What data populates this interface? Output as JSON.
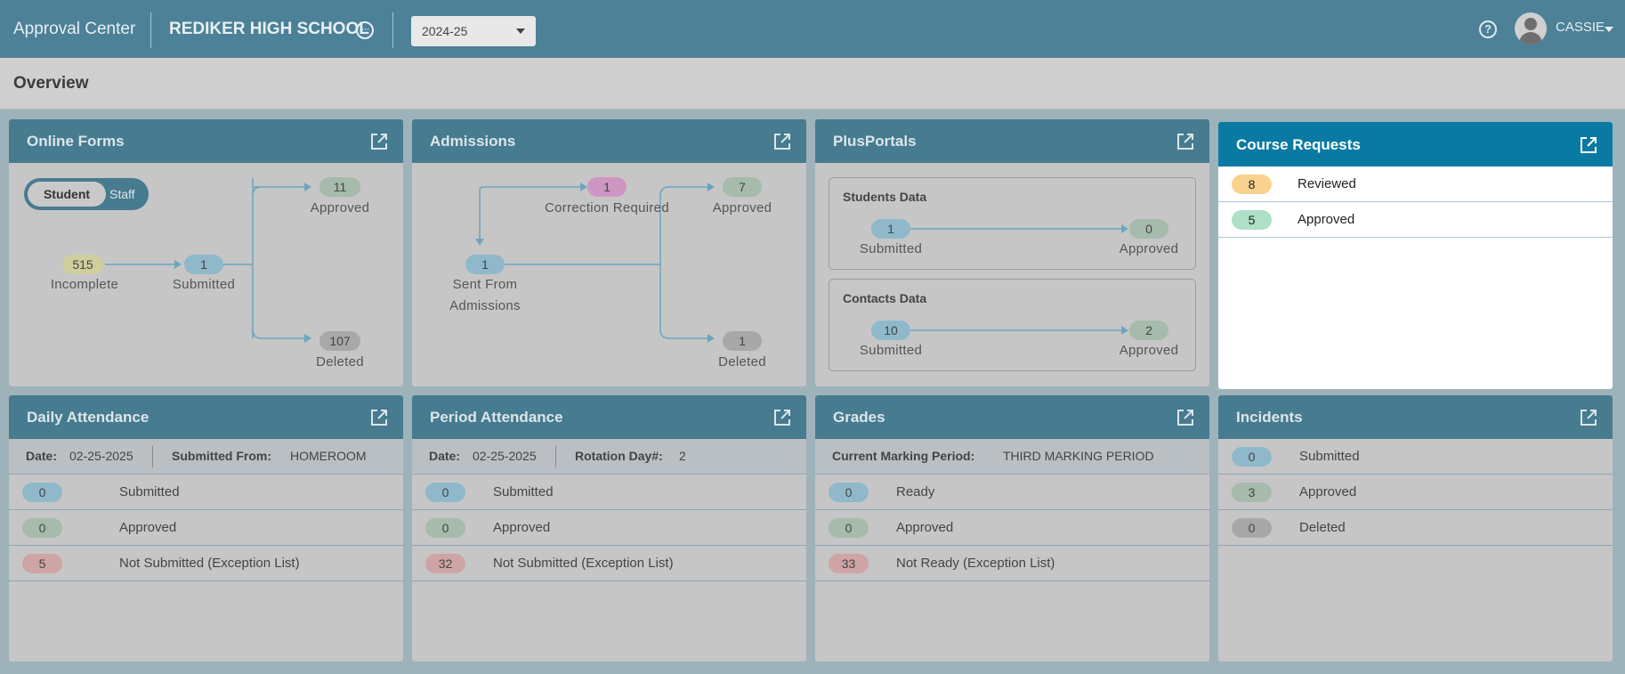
{
  "header": {
    "app_title": "Approval Center",
    "school_name": "REDIKER HIGH SCHOOL",
    "school_more": "···",
    "school_year": "2024-25",
    "help": "?",
    "user_name": "CASSIE"
  },
  "page_title": "Overview",
  "colors": {
    "header_bg": "#4c8197",
    "card_header_bg": "#477b8f",
    "active_card_header_bg": "#0a7aa3",
    "flow_line": "#6aa6c0"
  },
  "online_forms": {
    "title": "Online Forms",
    "toggle": {
      "on": "Student",
      "off": "Staff"
    },
    "incomplete": {
      "count": "515",
      "label": "Incomplete"
    },
    "submitted": {
      "count": "1",
      "label": "Submitted"
    },
    "approved": {
      "count": "11",
      "label": "Approved"
    },
    "deleted": {
      "count": "107",
      "label": "Deleted"
    }
  },
  "admissions": {
    "title": "Admissions",
    "correction": {
      "count": "1",
      "label": "Correction Required"
    },
    "sent": {
      "count": "1",
      "label_line1": "Sent From",
      "label_line2": "Admissions"
    },
    "approved": {
      "count": "7",
      "label": "Approved"
    },
    "deleted": {
      "count": "1",
      "label": "Deleted"
    }
  },
  "plusportals": {
    "title": "PlusPortals",
    "students": {
      "title": "Students Data",
      "submitted_count": "1",
      "submitted_label": "Submitted",
      "approved_count": "0",
      "approved_label": "Approved"
    },
    "contacts": {
      "title": "Contacts Data",
      "submitted_count": "10",
      "submitted_label": "Submitted",
      "approved_count": "2",
      "approved_label": "Approved"
    }
  },
  "course_requests": {
    "title": "Course Requests",
    "rows": [
      {
        "count": "8",
        "label": "Reviewed"
      },
      {
        "count": "5",
        "label": "Approved"
      }
    ]
  },
  "daily_attendance": {
    "title": "Daily Attendance",
    "date_key": "Date:",
    "date_val": "02-25-2025",
    "from_key": "Submitted From:",
    "from_val": "HOMEROOM",
    "rows": [
      {
        "count": "0",
        "label": "Submitted"
      },
      {
        "count": "0",
        "label": "Approved"
      },
      {
        "count": "5",
        "label": "Not Submitted (Exception List)"
      }
    ]
  },
  "period_attendance": {
    "title": "Period Attendance",
    "date_key": "Date:",
    "date_val": "02-25-2025",
    "rotation_key": "Rotation Day#:",
    "rotation_val": "2",
    "rows": [
      {
        "count": "0",
        "label": "Submitted"
      },
      {
        "count": "0",
        "label": "Approved"
      },
      {
        "count": "32",
        "label": "Not Submitted (Exception List)"
      }
    ]
  },
  "grades": {
    "title": "Grades",
    "period_key": "Current Marking Period:",
    "period_val": "THIRD MARKING PERIOD",
    "rows": [
      {
        "count": "0",
        "label": "Ready"
      },
      {
        "count": "0",
        "label": "Approved"
      },
      {
        "count": "33",
        "label": "Not Ready (Exception List)"
      }
    ]
  },
  "incidents": {
    "title": "Incidents",
    "rows": [
      {
        "count": "0",
        "label": "Submitted"
      },
      {
        "count": "3",
        "label": "Approved"
      },
      {
        "count": "0",
        "label": "Deleted"
      }
    ]
  }
}
